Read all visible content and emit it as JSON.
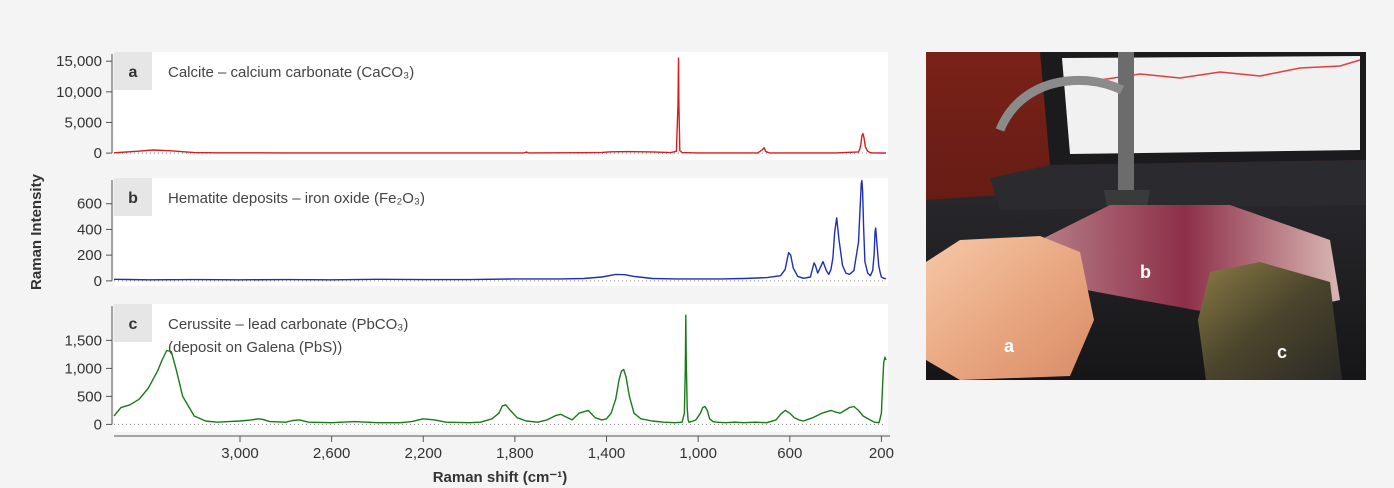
{
  "figure": {
    "xlabel": "Raman shift (cm⁻¹)",
    "ylabel": "Raman Intensity"
  },
  "chart_data": [
    {
      "type": "line",
      "panel": "a",
      "title": "Calcite – calcium carbonate (CaCO₃)",
      "color": "#d42020",
      "xlabel": "Raman shift (cm⁻¹)",
      "ylabel": "Raman Intensity",
      "xlim": [
        3550,
        180
      ],
      "ylim": [
        -800,
        16500
      ],
      "x_reversed": true,
      "yticks": [
        0,
        5000,
        10000,
        15000
      ],
      "ytick_labels": [
        "0",
        "5,000",
        "10,000",
        "15,000"
      ],
      "series": [
        {
          "x": [
            3550,
            3450,
            3380,
            3300,
            3200,
            3100,
            2800,
            2400,
            2000,
            1760,
            1750,
            1740,
            1500,
            1420,
            1380,
            1300,
            1200,
            1120,
            1095,
            1088,
            1086,
            1084,
            1080,
            1070,
            1000,
            740,
            718,
            712,
            706,
            690,
            400,
            300,
            295,
            290,
            285,
            281,
            276,
            270,
            260,
            250,
            240,
            220,
            200,
            180
          ],
          "y": [
            50,
            300,
            500,
            380,
            80,
            50,
            30,
            30,
            30,
            30,
            180,
            30,
            60,
            120,
            220,
            250,
            200,
            80,
            300,
            8000,
            15500,
            8000,
            400,
            80,
            40,
            30,
            600,
            900,
            300,
            30,
            30,
            200,
            600,
            1400,
            2800,
            3200,
            2500,
            1000,
            300,
            100,
            40,
            30,
            20,
            20
          ]
        }
      ]
    },
    {
      "type": "line",
      "panel": "b",
      "title": "Hematite deposits – iron oxide (Fe₂O₃)",
      "color": "#1f2fb0",
      "xlabel": "Raman shift (cm⁻¹)",
      "ylabel": "Raman Intensity",
      "xlim": [
        3550,
        180
      ],
      "ylim": [
        -40,
        800
      ],
      "x_reversed": true,
      "yticks": [
        0,
        200,
        400,
        600
      ],
      "ytick_labels": [
        "0",
        "200",
        "400",
        "600"
      ],
      "series": [
        {
          "x": [
            3550,
            3400,
            3200,
            3000,
            2800,
            2600,
            2400,
            2200,
            2000,
            1800,
            1600,
            1500,
            1420,
            1360,
            1320,
            1280,
            1200,
            1100,
            1000,
            900,
            800,
            700,
            640,
            620,
            612,
            605,
            596,
            585,
            565,
            540,
            510,
            500,
            494,
            488,
            478,
            465,
            455,
            440,
            430,
            420,
            412,
            404,
            395,
            385,
            370,
            355,
            340,
            320,
            300,
            292,
            288,
            285,
            282,
            278,
            272,
            260,
            248,
            238,
            232,
            228,
            225,
            220,
            212,
            205,
            200,
            195,
            190,
            185,
            180
          ],
          "y": [
            12,
            8,
            10,
            8,
            10,
            8,
            12,
            10,
            10,
            15,
            15,
            18,
            30,
            50,
            48,
            35,
            18,
            15,
            15,
            15,
            18,
            25,
            40,
            90,
            160,
            220,
            200,
            100,
            35,
            20,
            30,
            100,
            140,
            120,
            60,
            110,
            150,
            80,
            50,
            90,
            180,
            380,
            490,
            320,
            120,
            60,
            50,
            80,
            300,
            600,
            760,
            780,
            700,
            420,
            150,
            60,
            40,
            80,
            200,
            380,
            410,
            300,
            120,
            60,
            30,
            25,
            20,
            18,
            15
          ]
        }
      ]
    },
    {
      "type": "line",
      "panel": "c",
      "title": "Cerussite – lead carbonate (PbCO₃)",
      "subtitle": "(deposit on Galena (PbS))",
      "color": "#1a7a1a",
      "xlabel": "Raman shift (cm⁻¹)",
      "ylabel": "Raman Intensity",
      "xlim": [
        3550,
        180
      ],
      "ylim": [
        -100,
        2150
      ],
      "x_reversed": true,
      "yticks": [
        0,
        500,
        1000,
        1500
      ],
      "ytick_labels": [
        "0",
        "500",
        "1,000",
        "1,500"
      ],
      "xticks": [
        3000,
        2600,
        2200,
        1800,
        1400,
        1000,
        600,
        200
      ],
      "xtick_labels": [
        "3,000",
        "2,600",
        "2,200",
        "1,800",
        "1,400",
        "1,000",
        "600",
        "200"
      ],
      "series": [
        {
          "x": [
            3550,
            3520,
            3480,
            3440,
            3400,
            3380,
            3360,
            3340,
            3320,
            3300,
            3280,
            3250,
            3200,
            3150,
            3100,
            3050,
            3000,
            2950,
            2920,
            2900,
            2870,
            2800,
            2770,
            2740,
            2700,
            2600,
            2500,
            2400,
            2300,
            2250,
            2200,
            2150,
            2100,
            2000,
            1950,
            1900,
            1870,
            1855,
            1840,
            1820,
            1790,
            1750,
            1700,
            1660,
            1620,
            1600,
            1580,
            1550,
            1520,
            1480,
            1450,
            1420,
            1400,
            1380,
            1360,
            1345,
            1335,
            1325,
            1315,
            1300,
            1280,
            1250,
            1200,
            1150,
            1100,
            1070,
            1060,
            1056,
            1054,
            1052,
            1048,
            1044,
            1040,
            1030,
            1010,
            990,
            980,
            970,
            960,
            950,
            935,
            920,
            880,
            840,
            800,
            750,
            700,
            660,
            640,
            620,
            600,
            580,
            560,
            540,
            500,
            460,
            420,
            400,
            380,
            360,
            340,
            320,
            300,
            280,
            250,
            230,
            210,
            200,
            195,
            190,
            185,
            180
          ],
          "y": [
            150,
            300,
            350,
            450,
            650,
            800,
            950,
            1150,
            1320,
            1300,
            1000,
            500,
            150,
            60,
            40,
            50,
            60,
            80,
            100,
            90,
            50,
            40,
            70,
            80,
            40,
            30,
            50,
            30,
            30,
            50,
            100,
            80,
            40,
            30,
            40,
            100,
            200,
            330,
            350,
            250,
            120,
            60,
            40,
            80,
            160,
            180,
            140,
            80,
            200,
            250,
            120,
            80,
            100,
            200,
            450,
            800,
            950,
            980,
            850,
            500,
            200,
            100,
            60,
            40,
            30,
            40,
            200,
            1000,
            1950,
            1200,
            300,
            80,
            40,
            50,
            80,
            200,
            300,
            320,
            250,
            100,
            50,
            40,
            30,
            40,
            30,
            40,
            30,
            80,
            180,
            250,
            200,
            120,
            80,
            60,
            120,
            200,
            250,
            220,
            200,
            250,
            300,
            320,
            250,
            150,
            80,
            40,
            30,
            200,
            700,
            1100,
            1200,
            1150
          ]
        }
      ]
    }
  ],
  "photo": {
    "label_a": "a",
    "label_b": "b",
    "label_c": "c"
  }
}
